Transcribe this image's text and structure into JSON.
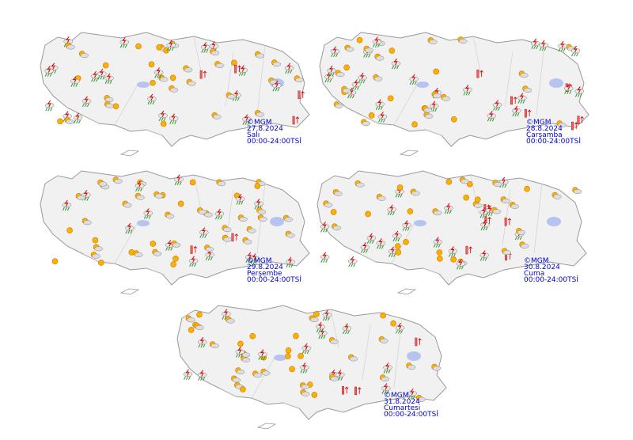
{
  "maps": [
    {
      "copyright": "©MGM",
      "date": "27.8.2024",
      "day": "Salı",
      "time": "00:00-24:00TSİ"
    },
    {
      "copyright": "©MGM",
      "date": "28.8.2024",
      "day": "Çarşamba",
      "time": "00:00-24:00TSİ"
    },
    {
      "copyright": "©MGM",
      "date": "29.8.2024",
      "day": "Perşembe",
      "time": "00:00-24:00TSİ"
    },
    {
      "copyright": "©MGM",
      "date": "30.8.2024",
      "day": "Cuma",
      "time": "00:00-24:00TSİ"
    },
    {
      "copyright": "©MGM",
      "date": "31.8.2024",
      "day": "Cumartesi",
      "time": "00:00-24:00TSİ"
    }
  ]
}
